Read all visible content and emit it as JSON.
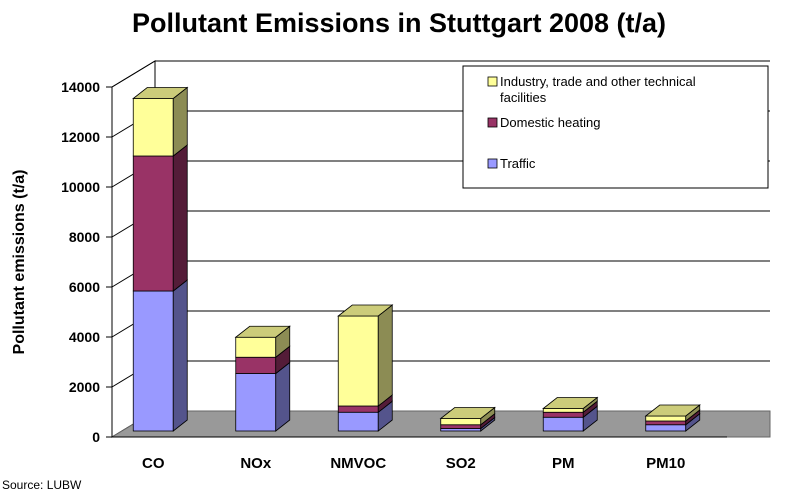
{
  "chart_data": {
    "type": "bar",
    "stacked": true,
    "three_d": true,
    "title": "Pollutant Emissions in Stuttgart 2008 (t/a)",
    "xlabel": "",
    "ylabel": "Pollutant emissions (t/a)",
    "ylim": [
      0,
      14000
    ],
    "yticks": [
      0,
      2000,
      4000,
      6000,
      8000,
      10000,
      12000,
      14000
    ],
    "grid": true,
    "legend_position": "top-right",
    "categories": [
      "CO",
      "NOx",
      "NMVOC",
      "SO2",
      "PM",
      "PM10"
    ],
    "series": [
      {
        "name": "Traffic",
        "color": "#9999ff",
        "values": [
          5600,
          2300,
          750,
          100,
          550,
          250
        ]
      },
      {
        "name": "Domestic heating",
        "color": "#993366",
        "values": [
          5400,
          650,
          250,
          150,
          200,
          150
        ]
      },
      {
        "name": "Industry, trade and other technical facilities",
        "color": "#ffff99",
        "values": [
          2300,
          800,
          3600,
          250,
          150,
          200
        ]
      }
    ],
    "legend_order": [
      "Industry, trade and other technical facilities",
      "Domestic heating",
      "Traffic"
    ],
    "source": "Source: LUBW"
  }
}
